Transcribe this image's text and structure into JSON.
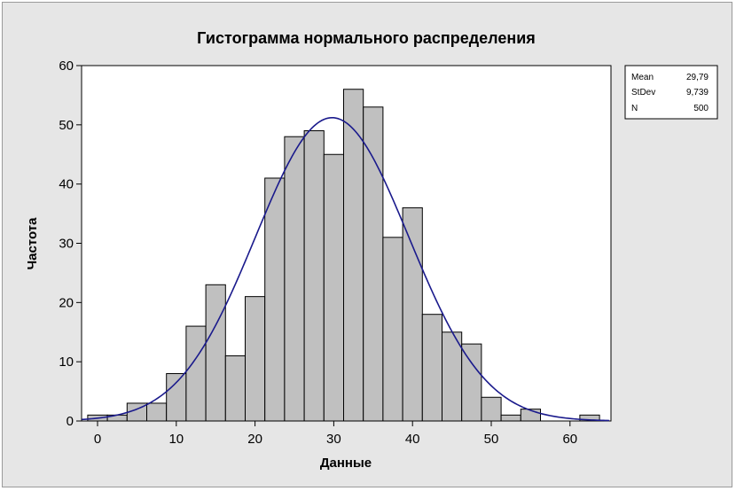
{
  "chart_data": {
    "type": "bar",
    "title": "Гистограмма нормального распределения",
    "xlabel": "Данные",
    "ylabel": "Частота",
    "xlim": [
      -2,
      65
    ],
    "ylim": [
      0,
      60
    ],
    "xticks": [
      0,
      10,
      20,
      30,
      40,
      50,
      60
    ],
    "yticks": [
      0,
      10,
      20,
      30,
      40,
      50,
      60
    ],
    "bin_width": 2.5,
    "bins": [
      {
        "x": 0,
        "count": 1
      },
      {
        "x": 2.5,
        "count": 1
      },
      {
        "x": 5,
        "count": 3
      },
      {
        "x": 7.5,
        "count": 3
      },
      {
        "x": 10,
        "count": 8
      },
      {
        "x": 12.5,
        "count": 16
      },
      {
        "x": 15,
        "count": 23
      },
      {
        "x": 17.5,
        "count": 11
      },
      {
        "x": 20,
        "count": 21
      },
      {
        "x": 22.5,
        "count": 41
      },
      {
        "x": 25,
        "count": 48
      },
      {
        "x": 27.5,
        "count": 49
      },
      {
        "x": 30,
        "count": 45
      },
      {
        "x": 32.5,
        "count": 56
      },
      {
        "x": 35,
        "count": 53
      },
      {
        "x": 37.5,
        "count": 31
      },
      {
        "x": 40,
        "count": 36
      },
      {
        "x": 42.5,
        "count": 18
      },
      {
        "x": 45,
        "count": 15
      },
      {
        "x": 47.5,
        "count": 13
      },
      {
        "x": 50,
        "count": 4
      },
      {
        "x": 52.5,
        "count": 1
      },
      {
        "x": 55,
        "count": 2
      },
      {
        "x": 57.5,
        "count": 0
      },
      {
        "x": 60,
        "count": 0
      },
      {
        "x": 62.5,
        "count": 1
      }
    ],
    "normal_curve": {
      "mean": 29.79,
      "stdev": 9.739,
      "n": 500
    },
    "stats_box": [
      {
        "label": "Mean",
        "value": "29,79"
      },
      {
        "label": "StDev",
        "value": "9,739"
      },
      {
        "label": "N",
        "value": "500"
      }
    ],
    "bar_color": "#c0c0c0",
    "curve_color": "#1a1a8c"
  }
}
